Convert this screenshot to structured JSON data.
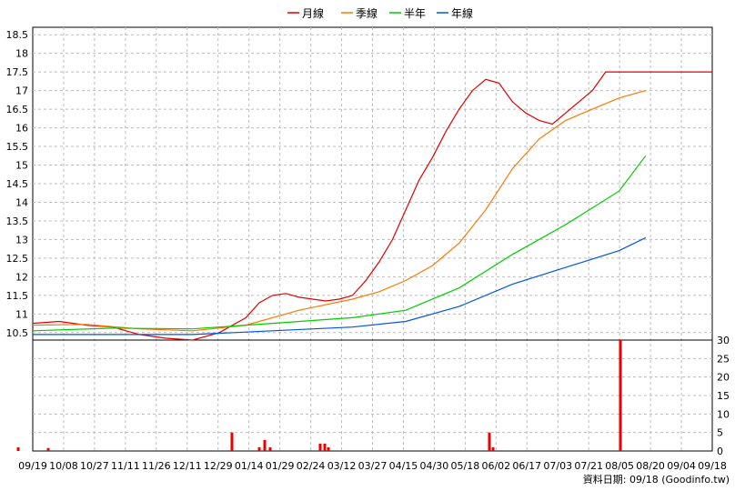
{
  "chart_data": {
    "type": "line",
    "legend": [
      {
        "name": "月線",
        "color": "#e00000"
      },
      {
        "name": "季線",
        "color": "#ff7700"
      },
      {
        "name": "半年",
        "color": "#00cc00"
      },
      {
        "name": "年線",
        "color": "#0055dd"
      }
    ],
    "x_labels": [
      "09/19",
      "10/08",
      "10/27",
      "11/11",
      "11/26",
      "12/11",
      "12/29",
      "01/14",
      "01/29",
      "02/24",
      "03/12",
      "03/27",
      "04/15",
      "04/30",
      "05/18",
      "06/02",
      "06/17",
      "07/03",
      "07/21",
      "08/05",
      "08/20",
      "09/04",
      "09/18"
    ],
    "price_axis": {
      "ylim": [
        10.3,
        18.7
      ],
      "ticks": [
        10.5,
        11,
        11.5,
        12,
        12.5,
        13,
        13.5,
        14,
        14.5,
        15,
        15.5,
        16,
        16.5,
        17,
        17.5,
        18,
        18.5
      ]
    },
    "volume_axis": {
      "ylim": [
        0,
        30
      ],
      "ticks": [
        0,
        5,
        10,
        15,
        20,
        25,
        30
      ]
    },
    "series": [
      {
        "name": "月線",
        "color": "#e00000",
        "x": [
          0,
          2,
          4,
          6,
          8,
          10,
          12,
          14,
          16,
          17,
          18,
          19,
          20,
          21,
          22,
          23,
          24,
          25,
          26,
          27,
          28,
          29,
          30,
          31,
          32,
          33,
          34,
          35,
          36,
          37,
          38,
          39,
          40,
          41,
          42,
          43,
          44,
          45,
          46,
          47,
          48,
          49,
          50,
          51
        ],
        "values": [
          10.75,
          10.8,
          10.7,
          10.65,
          10.45,
          10.35,
          10.3,
          10.5,
          10.9,
          11.3,
          11.5,
          11.55,
          11.45,
          11.4,
          11.35,
          11.4,
          11.5,
          11.9,
          12.4,
          13.0,
          13.8,
          14.6,
          15.2,
          15.9,
          16.5,
          17.0,
          17.3,
          17.2,
          16.7,
          16.4,
          16.2,
          16.1,
          16.4,
          16.7,
          17.0,
          17.5,
          17.5,
          17.5,
          17.5,
          17.5,
          17.5,
          17.5,
          17.5,
          17.5
        ]
      },
      {
        "name": "季線",
        "color": "#ff7700",
        "x": [
          0,
          4,
          8,
          12,
          16,
          20,
          24,
          26,
          28,
          30,
          32,
          34,
          36,
          38,
          40,
          42,
          44,
          46
        ],
        "values": [
          10.7,
          10.72,
          10.6,
          10.55,
          10.7,
          11.1,
          11.4,
          11.6,
          11.9,
          12.3,
          12.9,
          13.8,
          14.9,
          15.7,
          16.2,
          16.5,
          16.8,
          17.0
        ]
      },
      {
        "name": "半年",
        "color": "#00cc00",
        "x": [
          0,
          6,
          12,
          18,
          24,
          28,
          32,
          36,
          40,
          44,
          46
        ],
        "values": [
          10.55,
          10.62,
          10.6,
          10.75,
          10.9,
          11.1,
          11.7,
          12.6,
          13.4,
          14.3,
          15.25
        ]
      },
      {
        "name": "年線",
        "color": "#0055dd",
        "x": [
          0,
          6,
          12,
          18,
          24,
          28,
          32,
          36,
          40,
          44,
          46
        ],
        "values": [
          10.45,
          10.45,
          10.45,
          10.55,
          10.65,
          10.8,
          11.2,
          11.8,
          12.25,
          12.7,
          13.05
        ]
      }
    ],
    "volume_bars": [
      {
        "x": 20,
        "value": 1
      },
      {
        "x": 53,
        "value": 0.8
      },
      {
        "x": 255,
        "value": 5
      },
      {
        "x": 285,
        "value": 1
      },
      {
        "x": 291,
        "value": 3
      },
      {
        "x": 297,
        "value": 1
      },
      {
        "x": 352,
        "value": 2
      },
      {
        "x": 357,
        "value": 2
      },
      {
        "x": 361,
        "value": 1
      },
      {
        "x": 538,
        "value": 5
      },
      {
        "x": 542,
        "value": 1
      },
      {
        "x": 682,
        "value": 30
      }
    ],
    "footer": "資料日期: 09/18  (Goodinfo.tw)"
  }
}
